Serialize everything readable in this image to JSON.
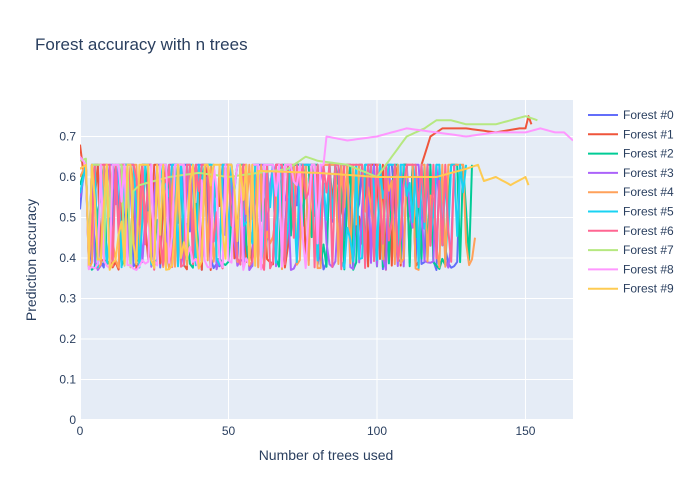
{
  "chart_data": {
    "type": "line",
    "title": "Forest accuracy with n trees",
    "xlabel": "Number of trees used",
    "ylabel": "Prediction accuracy",
    "xlim": [
      0,
      166
    ],
    "ylim": [
      0,
      0.79
    ],
    "xticks": [
      0,
      50,
      100,
      150
    ],
    "yticks": [
      0,
      0.1,
      0.2,
      0.3,
      0.4,
      0.5,
      0.6,
      0.7
    ],
    "grid": true,
    "legend_position": "right",
    "series": [
      {
        "name": "Forest #0",
        "color": "#636efa",
        "keypoints": [
          [
            0,
            0.52
          ],
          [
            1,
            0.6
          ],
          [
            3,
            0.63
          ],
          [
            20,
            0.63
          ],
          [
            60,
            0.63
          ],
          [
            100,
            0.63
          ],
          [
            128,
            0.63
          ]
        ],
        "noise_until": 128,
        "seed": 11
      },
      {
        "name": "Forest #1",
        "color": "#ef553b",
        "keypoints": [
          [
            0,
            0.68
          ],
          [
            1,
            0.62
          ],
          [
            3,
            0.63
          ],
          [
            50,
            0.63
          ],
          [
            100,
            0.63
          ],
          [
            115,
            0.63
          ],
          [
            118,
            0.7
          ],
          [
            122,
            0.72
          ],
          [
            130,
            0.72
          ],
          [
            140,
            0.71
          ],
          [
            148,
            0.72
          ],
          [
            150,
            0.72
          ],
          [
            151,
            0.75
          ],
          [
            152,
            0.73
          ]
        ],
        "noise_until": 116,
        "seed": 23
      },
      {
        "name": "Forest #2",
        "color": "#00cc96",
        "keypoints": [
          [
            0,
            0.58
          ],
          [
            2,
            0.63
          ],
          [
            40,
            0.63
          ],
          [
            90,
            0.63
          ],
          [
            132,
            0.63
          ]
        ],
        "noise_until": 132,
        "seed": 37
      },
      {
        "name": "Forest #3",
        "color": "#ab63fa",
        "keypoints": [
          [
            0,
            0.55
          ],
          [
            2,
            0.63
          ],
          [
            60,
            0.63
          ],
          [
            126,
            0.63
          ]
        ],
        "noise_until": 126,
        "seed": 41
      },
      {
        "name": "Forest #4",
        "color": "#ffa15a",
        "keypoints": [
          [
            0,
            0.6
          ],
          [
            2,
            0.63
          ],
          [
            60,
            0.63
          ],
          [
            97,
            0.63
          ],
          [
            98,
            0.73
          ],
          [
            100,
            0.63
          ],
          [
            128,
            0.63
          ],
          [
            133,
            0.45
          ]
        ],
        "noise_until": 133,
        "seed": 53
      },
      {
        "name": "Forest #5",
        "color": "#19d3f3",
        "keypoints": [
          [
            0,
            0.56
          ],
          [
            2,
            0.63
          ],
          [
            60,
            0.63
          ],
          [
            110,
            0.63
          ],
          [
            114,
            0.72
          ],
          [
            118,
            0.63
          ],
          [
            130,
            0.63
          ]
        ],
        "noise_until": 130,
        "seed": 61
      },
      {
        "name": "Forest #6",
        "color": "#ff6692",
        "keypoints": [
          [
            0,
            0.62
          ],
          [
            2,
            0.63
          ],
          [
            60,
            0.63
          ],
          [
            120,
            0.63
          ],
          [
            123,
            0.72
          ],
          [
            126,
            0.63
          ]
        ],
        "noise_until": 126,
        "seed": 71
      },
      {
        "name": "Forest #7",
        "color": "#b6e880",
        "keypoints": [
          [
            0,
            0.64
          ],
          [
            4,
            0.65
          ],
          [
            8,
            0.65
          ],
          [
            12,
            0.6
          ],
          [
            16,
            0.55
          ],
          [
            20,
            0.58
          ],
          [
            30,
            0.6
          ],
          [
            40,
            0.61
          ],
          [
            50,
            0.6
          ],
          [
            60,
            0.61
          ],
          [
            70,
            0.62
          ],
          [
            76,
            0.65
          ],
          [
            80,
            0.64
          ],
          [
            90,
            0.63
          ],
          [
            100,
            0.6
          ],
          [
            105,
            0.65
          ],
          [
            110,
            0.7
          ],
          [
            116,
            0.72
          ],
          [
            120,
            0.74
          ],
          [
            125,
            0.74
          ],
          [
            130,
            0.73
          ],
          [
            135,
            0.73
          ],
          [
            140,
            0.73
          ],
          [
            145,
            0.74
          ],
          [
            150,
            0.75
          ],
          [
            154,
            0.74
          ]
        ],
        "noise_until": 18,
        "seed": 83
      },
      {
        "name": "Forest #8",
        "color": "#ff97ff",
        "keypoints": [
          [
            0,
            0.65
          ],
          [
            2,
            0.63
          ],
          [
            40,
            0.63
          ],
          [
            82,
            0.63
          ],
          [
            83,
            0.7
          ],
          [
            90,
            0.69
          ],
          [
            100,
            0.7
          ],
          [
            110,
            0.72
          ],
          [
            120,
            0.71
          ],
          [
            130,
            0.7
          ],
          [
            140,
            0.71
          ],
          [
            150,
            0.71
          ],
          [
            155,
            0.72
          ],
          [
            160,
            0.71
          ],
          [
            163,
            0.71
          ],
          [
            166,
            0.69
          ]
        ],
        "noise_until": 82,
        "seed": 97
      },
      {
        "name": "Forest #9",
        "color": "#fecb52",
        "keypoints": [
          [
            0,
            0.62
          ],
          [
            2,
            0.63
          ],
          [
            40,
            0.62
          ],
          [
            80,
            0.61
          ],
          [
            100,
            0.6
          ],
          [
            120,
            0.6
          ],
          [
            130,
            0.62
          ],
          [
            134,
            0.63
          ],
          [
            136,
            0.59
          ],
          [
            140,
            0.6
          ],
          [
            145,
            0.58
          ],
          [
            150,
            0.6
          ],
          [
            151,
            0.58
          ]
        ],
        "noise_until": 60,
        "seed": 101
      }
    ]
  }
}
